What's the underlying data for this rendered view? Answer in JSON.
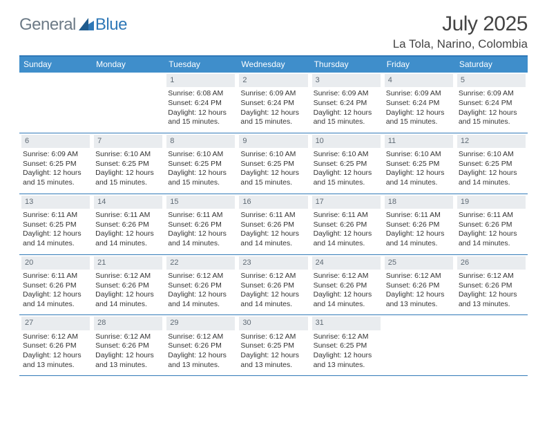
{
  "logo": {
    "text1": "General",
    "text2": "Blue",
    "mark_color": "#2f78b7",
    "text1_color": "#6c7a86"
  },
  "title": "July 2025",
  "location": "La Tola, Narino, Colombia",
  "colors": {
    "header_bg": "#3f8ecb",
    "border": "#2f78b7",
    "daynum_bg": "#e9ecef",
    "daynum_color": "#5f6a74",
    "text": "#333333",
    "background": "#ffffff"
  },
  "fonts": {
    "title_size": 30,
    "location_size": 17,
    "header_size": 12,
    "body_size": 10.5
  },
  "day_headers": [
    "Sunday",
    "Monday",
    "Tuesday",
    "Wednesday",
    "Thursday",
    "Friday",
    "Saturday"
  ],
  "weeks": [
    [
      null,
      null,
      {
        "n": "1",
        "sr": "Sunrise: 6:08 AM",
        "ss": "Sunset: 6:24 PM",
        "d1": "Daylight: 12 hours",
        "d2": "and 15 minutes."
      },
      {
        "n": "2",
        "sr": "Sunrise: 6:09 AM",
        "ss": "Sunset: 6:24 PM",
        "d1": "Daylight: 12 hours",
        "d2": "and 15 minutes."
      },
      {
        "n": "3",
        "sr": "Sunrise: 6:09 AM",
        "ss": "Sunset: 6:24 PM",
        "d1": "Daylight: 12 hours",
        "d2": "and 15 minutes."
      },
      {
        "n": "4",
        "sr": "Sunrise: 6:09 AM",
        "ss": "Sunset: 6:24 PM",
        "d1": "Daylight: 12 hours",
        "d2": "and 15 minutes."
      },
      {
        "n": "5",
        "sr": "Sunrise: 6:09 AM",
        "ss": "Sunset: 6:24 PM",
        "d1": "Daylight: 12 hours",
        "d2": "and 15 minutes."
      }
    ],
    [
      {
        "n": "6",
        "sr": "Sunrise: 6:09 AM",
        "ss": "Sunset: 6:25 PM",
        "d1": "Daylight: 12 hours",
        "d2": "and 15 minutes."
      },
      {
        "n": "7",
        "sr": "Sunrise: 6:10 AM",
        "ss": "Sunset: 6:25 PM",
        "d1": "Daylight: 12 hours",
        "d2": "and 15 minutes."
      },
      {
        "n": "8",
        "sr": "Sunrise: 6:10 AM",
        "ss": "Sunset: 6:25 PM",
        "d1": "Daylight: 12 hours",
        "d2": "and 15 minutes."
      },
      {
        "n": "9",
        "sr": "Sunrise: 6:10 AM",
        "ss": "Sunset: 6:25 PM",
        "d1": "Daylight: 12 hours",
        "d2": "and 15 minutes."
      },
      {
        "n": "10",
        "sr": "Sunrise: 6:10 AM",
        "ss": "Sunset: 6:25 PM",
        "d1": "Daylight: 12 hours",
        "d2": "and 15 minutes."
      },
      {
        "n": "11",
        "sr": "Sunrise: 6:10 AM",
        "ss": "Sunset: 6:25 PM",
        "d1": "Daylight: 12 hours",
        "d2": "and 14 minutes."
      },
      {
        "n": "12",
        "sr": "Sunrise: 6:10 AM",
        "ss": "Sunset: 6:25 PM",
        "d1": "Daylight: 12 hours",
        "d2": "and 14 minutes."
      }
    ],
    [
      {
        "n": "13",
        "sr": "Sunrise: 6:11 AM",
        "ss": "Sunset: 6:25 PM",
        "d1": "Daylight: 12 hours",
        "d2": "and 14 minutes."
      },
      {
        "n": "14",
        "sr": "Sunrise: 6:11 AM",
        "ss": "Sunset: 6:26 PM",
        "d1": "Daylight: 12 hours",
        "d2": "and 14 minutes."
      },
      {
        "n": "15",
        "sr": "Sunrise: 6:11 AM",
        "ss": "Sunset: 6:26 PM",
        "d1": "Daylight: 12 hours",
        "d2": "and 14 minutes."
      },
      {
        "n": "16",
        "sr": "Sunrise: 6:11 AM",
        "ss": "Sunset: 6:26 PM",
        "d1": "Daylight: 12 hours",
        "d2": "and 14 minutes."
      },
      {
        "n": "17",
        "sr": "Sunrise: 6:11 AM",
        "ss": "Sunset: 6:26 PM",
        "d1": "Daylight: 12 hours",
        "d2": "and 14 minutes."
      },
      {
        "n": "18",
        "sr": "Sunrise: 6:11 AM",
        "ss": "Sunset: 6:26 PM",
        "d1": "Daylight: 12 hours",
        "d2": "and 14 minutes."
      },
      {
        "n": "19",
        "sr": "Sunrise: 6:11 AM",
        "ss": "Sunset: 6:26 PM",
        "d1": "Daylight: 12 hours",
        "d2": "and 14 minutes."
      }
    ],
    [
      {
        "n": "20",
        "sr": "Sunrise: 6:11 AM",
        "ss": "Sunset: 6:26 PM",
        "d1": "Daylight: 12 hours",
        "d2": "and 14 minutes."
      },
      {
        "n": "21",
        "sr": "Sunrise: 6:12 AM",
        "ss": "Sunset: 6:26 PM",
        "d1": "Daylight: 12 hours",
        "d2": "and 14 minutes."
      },
      {
        "n": "22",
        "sr": "Sunrise: 6:12 AM",
        "ss": "Sunset: 6:26 PM",
        "d1": "Daylight: 12 hours",
        "d2": "and 14 minutes."
      },
      {
        "n": "23",
        "sr": "Sunrise: 6:12 AM",
        "ss": "Sunset: 6:26 PM",
        "d1": "Daylight: 12 hours",
        "d2": "and 14 minutes."
      },
      {
        "n": "24",
        "sr": "Sunrise: 6:12 AM",
        "ss": "Sunset: 6:26 PM",
        "d1": "Daylight: 12 hours",
        "d2": "and 14 minutes."
      },
      {
        "n": "25",
        "sr": "Sunrise: 6:12 AM",
        "ss": "Sunset: 6:26 PM",
        "d1": "Daylight: 12 hours",
        "d2": "and 13 minutes."
      },
      {
        "n": "26",
        "sr": "Sunrise: 6:12 AM",
        "ss": "Sunset: 6:26 PM",
        "d1": "Daylight: 12 hours",
        "d2": "and 13 minutes."
      }
    ],
    [
      {
        "n": "27",
        "sr": "Sunrise: 6:12 AM",
        "ss": "Sunset: 6:26 PM",
        "d1": "Daylight: 12 hours",
        "d2": "and 13 minutes."
      },
      {
        "n": "28",
        "sr": "Sunrise: 6:12 AM",
        "ss": "Sunset: 6:26 PM",
        "d1": "Daylight: 12 hours",
        "d2": "and 13 minutes."
      },
      {
        "n": "29",
        "sr": "Sunrise: 6:12 AM",
        "ss": "Sunset: 6:26 PM",
        "d1": "Daylight: 12 hours",
        "d2": "and 13 minutes."
      },
      {
        "n": "30",
        "sr": "Sunrise: 6:12 AM",
        "ss": "Sunset: 6:25 PM",
        "d1": "Daylight: 12 hours",
        "d2": "and 13 minutes."
      },
      {
        "n": "31",
        "sr": "Sunrise: 6:12 AM",
        "ss": "Sunset: 6:25 PM",
        "d1": "Daylight: 12 hours",
        "d2": "and 13 minutes."
      },
      null,
      null
    ]
  ]
}
